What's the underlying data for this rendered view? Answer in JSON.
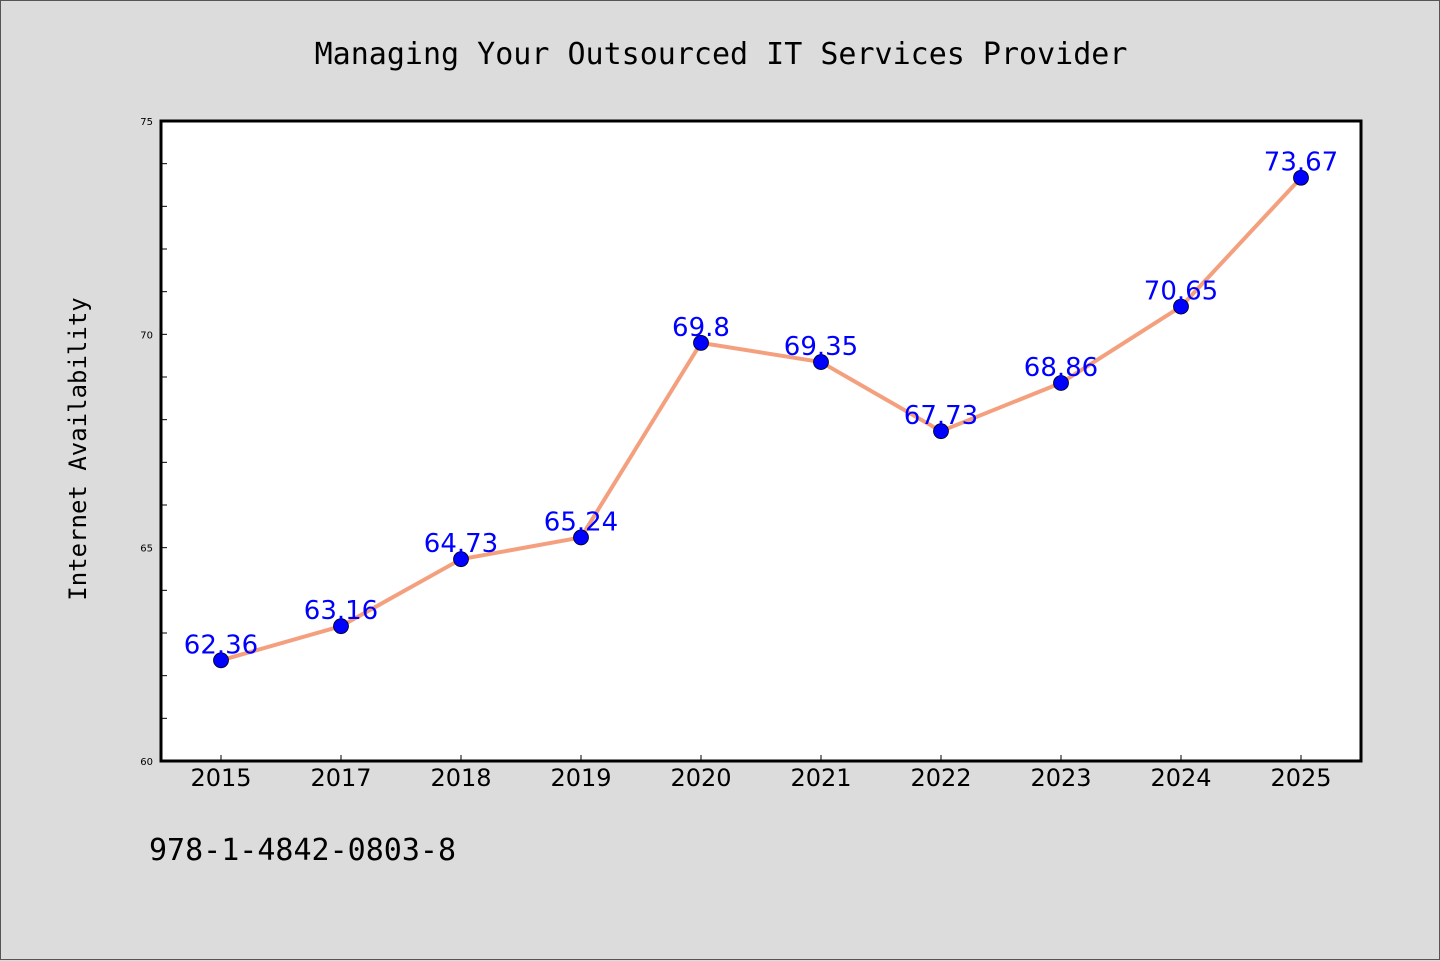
{
  "chart_data": {
    "type": "line",
    "title": "Managing Your Outsourced IT Services Provider",
    "xlabel": "",
    "ylabel": "Internet Availability",
    "categories": [
      "2015",
      "2017",
      "2018",
      "2019",
      "2020",
      "2021",
      "2022",
      "2023",
      "2024",
      "2025"
    ],
    "series": [
      {
        "values": [
          62.36,
          63.16,
          64.73,
          65.24,
          69.8,
          69.35,
          67.73,
          68.86,
          70.65,
          73.67
        ],
        "labels": [
          "62.36",
          "63.16",
          "64.73",
          "65.24",
          "69.8",
          "69.35",
          "67.73",
          "68.86",
          "70.65",
          "73.67"
        ]
      }
    ],
    "yticks": [
      "60",
      "65",
      "70",
      "75"
    ],
    "ylim": [
      60,
      75
    ],
    "grid": false,
    "colors": {
      "line": "#f4a07e",
      "marker": "#0000ff",
      "data_label": "#0000ff",
      "background": "#dcdcdc",
      "plot_background": "#ffffff"
    }
  },
  "footer": {
    "isbn": "978-1-4842-0803-8"
  }
}
